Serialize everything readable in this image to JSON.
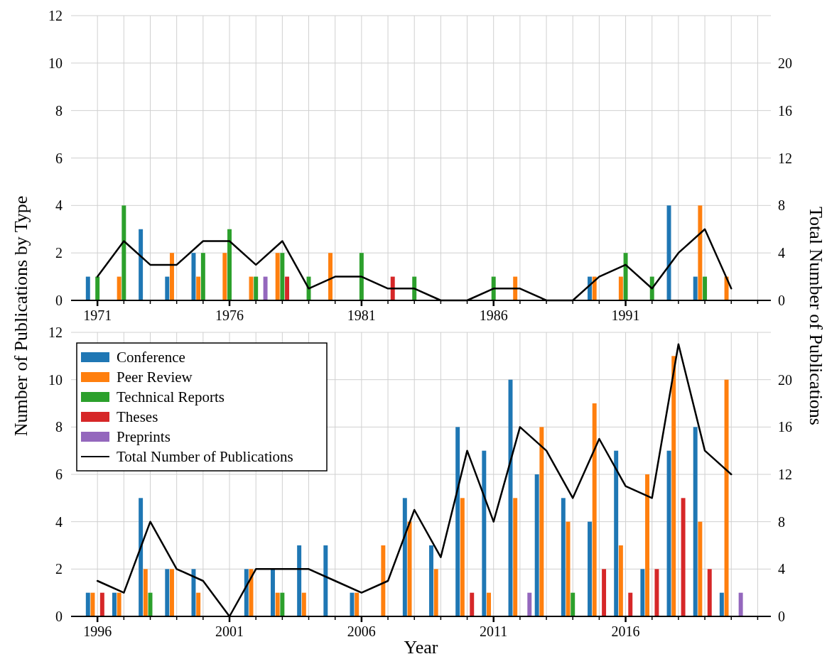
{
  "chart_data": [
    {
      "type": "bar",
      "x": [
        1971,
        1972,
        1973,
        1974,
        1975,
        1976,
        1977,
        1978,
        1979,
        1980,
        1981,
        1982,
        1983,
        1984,
        1985,
        1986,
        1987,
        1988,
        1989,
        1990,
        1991,
        1992,
        1993,
        1994,
        1995
      ],
      "series": [
        {
          "color": "#1f77b4",
          "values": [
            1,
            0,
            3,
            1,
            2,
            0,
            0,
            0,
            0,
            0,
            0,
            0,
            0,
            0,
            0,
            0,
            0,
            0,
            0,
            1,
            0,
            0,
            4,
            1,
            0
          ]
        },
        {
          "color": "#ff7f0e",
          "values": [
            0,
            1,
            0,
            2,
            1,
            2,
            1,
            2,
            0,
            2,
            0,
            0,
            0,
            0,
            0,
            0,
            1,
            0,
            0,
            1,
            1,
            0,
            0,
            4,
            1
          ]
        },
        {
          "color": "#2ca02c",
          "values": [
            1,
            4,
            0,
            0,
            2,
            3,
            1,
            2,
            1,
            0,
            2,
            0,
            1,
            0,
            0,
            1,
            0,
            0,
            0,
            0,
            2,
            1,
            0,
            1,
            0
          ]
        },
        {
          "color": "#d62728",
          "values": [
            0,
            0,
            0,
            0,
            0,
            0,
            0,
            1,
            0,
            0,
            0,
            1,
            0,
            0,
            0,
            0,
            0,
            0,
            0,
            0,
            0,
            0,
            0,
            0,
            0
          ]
        },
        {
          "color": "#9467bd",
          "values": [
            0,
            0,
            0,
            0,
            0,
            0,
            1,
            0,
            0,
            0,
            0,
            0,
            0,
            0,
            0,
            0,
            0,
            0,
            0,
            0,
            0,
            0,
            0,
            0,
            0
          ]
        },
        {
          "type": "line",
          "axis": "y2",
          "color": "#000000",
          "values": [
            2,
            5,
            3,
            3,
            5,
            5,
            3,
            5,
            1,
            2,
            2,
            1,
            1,
            0,
            0,
            1,
            1,
            0,
            0,
            2,
            3,
            1,
            4,
            6,
            1
          ]
        }
      ],
      "xlim": [
        1970,
        1996.5
      ],
      "xticks": [
        1971,
        {
          "value": 1972,
          "label": null
        },
        {
          "value": 1973,
          "label": null
        },
        {
          "value": 1974,
          "label": null
        },
        {
          "value": 1975,
          "label": null
        },
        1976,
        {
          "value": 1977,
          "label": null
        },
        {
          "value": 1978,
          "label": null
        },
        {
          "value": 1979,
          "label": null
        },
        {
          "value": 1980,
          "label": null
        },
        1981,
        {
          "value": 1982,
          "label": null
        },
        {
          "value": 1983,
          "label": null
        },
        {
          "value": 1984,
          "label": null
        },
        {
          "value": 1985,
          "label": null
        },
        1986,
        {
          "value": 1987,
          "label": null
        },
        {
          "value": 1988,
          "label": null
        },
        {
          "value": 1989,
          "label": null
        },
        {
          "value": 1990,
          "label": null
        },
        1991,
        {
          "value": 1992,
          "label": null
        },
        {
          "value": 1993,
          "label": null
        },
        {
          "value": 1994,
          "label": null
        },
        {
          "value": 1995,
          "label": null
        },
        {
          "value": 1996,
          "label": null
        }
      ],
      "ylim": [
        0,
        12
      ],
      "yticks": [
        0,
        2,
        4,
        6,
        8,
        10,
        12
      ],
      "y2lim": [
        0,
        24
      ],
      "y2ticks": [
        0,
        4,
        8,
        12,
        16,
        20
      ],
      "grid": true,
      "legend": false
    },
    {
      "type": "bar",
      "x": [
        1996,
        1997,
        1998,
        1999,
        2000,
        2001,
        2002,
        2003,
        2004,
        2005,
        2006,
        2007,
        2008,
        2009,
        2010,
        2011,
        2012,
        2013,
        2014,
        2015,
        2016,
        2017,
        2018,
        2019,
        2020
      ],
      "xlabel": "Year",
      "ylabel": "Number of Publications by Type",
      "y2label": "Total Number of Publications",
      "series": [
        {
          "name": "Conference",
          "color": "#1f77b4",
          "values": [
            1,
            1,
            5,
            2,
            2,
            0,
            2,
            2,
            3,
            3,
            1,
            0,
            5,
            3,
            8,
            7,
            10,
            6,
            5,
            4,
            7,
            2,
            7,
            8,
            1
          ]
        },
        {
          "name": "Peer Review",
          "color": "#ff7f0e",
          "values": [
            1,
            1,
            2,
            2,
            1,
            0,
            2,
            1,
            1,
            0,
            1,
            3,
            4,
            2,
            5,
            1,
            5,
            8,
            4,
            9,
            3,
            6,
            11,
            4,
            10
          ]
        },
        {
          "name": "Technical Reports",
          "color": "#2ca02c",
          "values": [
            0,
            0,
            1,
            0,
            0,
            0,
            0,
            1,
            0,
            0,
            0,
            0,
            0,
            0,
            0,
            0,
            0,
            0,
            1,
            0,
            0,
            0,
            0,
            0,
            0
          ]
        },
        {
          "name": "Theses",
          "color": "#d62728",
          "values": [
            1,
            0,
            0,
            0,
            0,
            0,
            0,
            0,
            0,
            0,
            0,
            0,
            0,
            0,
            1,
            0,
            0,
            0,
            0,
            2,
            1,
            2,
            5,
            2,
            0
          ]
        },
        {
          "name": "Preprints",
          "color": "#9467bd",
          "values": [
            0,
            0,
            0,
            0,
            0,
            0,
            0,
            0,
            0,
            0,
            0,
            0,
            0,
            0,
            0,
            0,
            1,
            0,
            0,
            0,
            0,
            0,
            0,
            0,
            1
          ]
        },
        {
          "name": "Total Number of Publications",
          "type": "line",
          "axis": "y2",
          "color": "#000000",
          "values": [
            3,
            2,
            8,
            4,
            3,
            0,
            4,
            4,
            4,
            3,
            2,
            3,
            9,
            5,
            14,
            8,
            16,
            14,
            10,
            15,
            11,
            10,
            23,
            14,
            12
          ]
        }
      ],
      "xlim": [
        1995,
        2021.5
      ],
      "xticks": [
        1996,
        {
          "value": 1997,
          "label": null
        },
        {
          "value": 1998,
          "label": null
        },
        {
          "value": 1999,
          "label": null
        },
        {
          "value": 2000,
          "label": null
        },
        2001,
        {
          "value": 2002,
          "label": null
        },
        {
          "value": 2003,
          "label": null
        },
        {
          "value": 2004,
          "label": null
        },
        {
          "value": 2005,
          "label": null
        },
        2006,
        {
          "value": 2007,
          "label": null
        },
        {
          "value": 2008,
          "label": null
        },
        {
          "value": 2009,
          "label": null
        },
        {
          "value": 2010,
          "label": null
        },
        2011,
        {
          "value": 2012,
          "label": null
        },
        {
          "value": 2013,
          "label": null
        },
        {
          "value": 2014,
          "label": null
        },
        {
          "value": 2015,
          "label": null
        },
        2016,
        {
          "value": 2017,
          "label": null
        },
        {
          "value": 2018,
          "label": null
        },
        {
          "value": 2019,
          "label": null
        },
        {
          "value": 2020,
          "label": null
        },
        {
          "value": 2021,
          "label": null
        }
      ],
      "ylim": [
        0,
        12
      ],
      "yticks": [
        0,
        2,
        4,
        6,
        8,
        10,
        12
      ],
      "y2lim": [
        0,
        24
      ],
      "y2ticks": [
        0,
        4,
        8,
        12,
        16,
        20
      ],
      "grid": true,
      "legend": "top left"
    }
  ]
}
